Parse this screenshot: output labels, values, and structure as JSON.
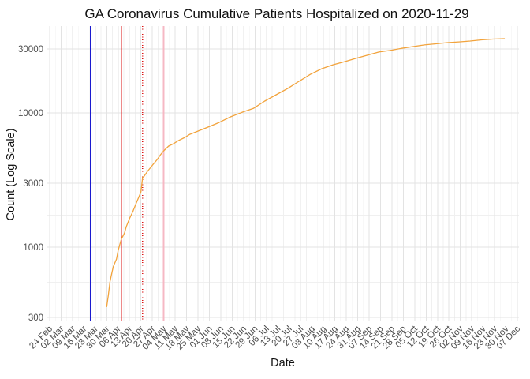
{
  "chart_data": {
    "type": "line",
    "title": "GA Coronavirus Cumulative Patients Hospitalized on 2020-11-29",
    "xlabel": "Date",
    "ylabel": "Count (Log Scale)",
    "y_scale": "log10",
    "ylim": [
      280,
      44000
    ],
    "grid": "on",
    "legend": "none",
    "x_range": [
      "2020-02-24",
      "2020-12-07"
    ],
    "x_tick_interval_days": 7,
    "x_ticks": [
      "24 Feb",
      "02 Mar",
      "09 Mar",
      "16 Mar",
      "23 Mar",
      "30 Mar",
      "06 Apr",
      "13 Apr",
      "20 Apr",
      "27 Apr",
      "04 May",
      "11 May",
      "18 May",
      "25 May",
      "01 Jun",
      "08 Jun",
      "15 Jun",
      "22 Jun",
      "29 Jun",
      "06 Jul",
      "13 Jul",
      "20 Jul",
      "27 Jul",
      "03 Aug",
      "10 Aug",
      "17 Aug",
      "24 Aug",
      "31 Aug",
      "07 Sep",
      "14 Sep",
      "21 Sep",
      "28 Sep",
      "05 Oct",
      "12 Oct",
      "19 Oct",
      "26 Oct",
      "02 Nov",
      "09 Nov",
      "16 Nov",
      "23 Nov",
      "30 Nov",
      "07 Dec"
    ],
    "y_ticks": [
      {
        "label": "30000",
        "value": 30000
      },
      {
        "label": "10000",
        "value": 10000
      },
      {
        "label": "3000",
        "value": 3000
      },
      {
        "label": "1000",
        "value": 1000
      },
      {
        "label": "300",
        "value": 300
      }
    ],
    "y_minor_values": [
      17321,
      5477,
      1732,
      548
    ],
    "series": [
      {
        "name": "cumulative-hospitalized",
        "color": "#F2A33C",
        "points": [
          [
            "2020-03-30",
            360
          ],
          [
            "2020-03-31",
            440
          ],
          [
            "2020-04-01",
            550
          ],
          [
            "2020-04-02",
            630
          ],
          [
            "2020-04-03",
            715
          ],
          [
            "2020-04-05",
            815
          ],
          [
            "2020-04-06",
            945
          ],
          [
            "2020-04-07",
            1040
          ],
          [
            "2020-04-08",
            1150
          ],
          [
            "2020-04-10",
            1280
          ],
          [
            "2020-04-11",
            1420
          ],
          [
            "2020-04-13",
            1630
          ],
          [
            "2020-04-15",
            1840
          ],
          [
            "2020-04-17",
            2110
          ],
          [
            "2020-04-19",
            2410
          ],
          [
            "2020-04-20",
            2580
          ],
          [
            "2020-04-21",
            3300
          ],
          [
            "2020-04-22",
            3380
          ],
          [
            "2020-04-24",
            3670
          ],
          [
            "2020-04-26",
            3930
          ],
          [
            "2020-04-28",
            4210
          ],
          [
            "2020-04-30",
            4500
          ],
          [
            "2020-05-02",
            4880
          ],
          [
            "2020-05-04",
            5220
          ],
          [
            "2020-05-07",
            5660
          ],
          [
            "2020-05-10",
            5900
          ],
          [
            "2020-05-13",
            6220
          ],
          [
            "2020-05-17",
            6570
          ],
          [
            "2020-05-20",
            6930
          ],
          [
            "2020-05-24",
            7230
          ],
          [
            "2020-05-31",
            7830
          ],
          [
            "2020-06-07",
            8490
          ],
          [
            "2020-06-14",
            9350
          ],
          [
            "2020-06-21",
            10100
          ],
          [
            "2020-06-28",
            10800
          ],
          [
            "2020-07-05",
            12250
          ],
          [
            "2020-07-12",
            13650
          ],
          [
            "2020-07-19",
            15200
          ],
          [
            "2020-07-26",
            17200
          ],
          [
            "2020-08-02",
            19400
          ],
          [
            "2020-08-09",
            21350
          ],
          [
            "2020-08-16",
            22850
          ],
          [
            "2020-08-23",
            24100
          ],
          [
            "2020-08-30",
            25500
          ],
          [
            "2020-09-06",
            26900
          ],
          [
            "2020-09-13",
            28400
          ],
          [
            "2020-09-20",
            29200
          ],
          [
            "2020-09-27",
            30300
          ],
          [
            "2020-10-04",
            31200
          ],
          [
            "2020-10-11",
            32100
          ],
          [
            "2020-10-18",
            32700
          ],
          [
            "2020-10-25",
            33400
          ],
          [
            "2020-11-01",
            33800
          ],
          [
            "2020-11-08",
            34300
          ],
          [
            "2020-11-15",
            35000
          ],
          [
            "2020-11-22",
            35500
          ],
          [
            "2020-11-29",
            35700
          ]
        ]
      }
    ],
    "vlines": [
      {
        "name": "blue-solid-reference",
        "color": "#1A1ACF",
        "style": "solid",
        "width": 1.3,
        "date_est": "2020-03-20"
      },
      {
        "name": "red-solid-reference",
        "color": "#DB1414",
        "style": "solid",
        "width": 1.3,
        "date_est": "2020-04-08"
      },
      {
        "name": "red-dotted-reference",
        "color": "#DB1414",
        "style": "dotted",
        "width": 1.1,
        "date_est": "2020-04-21"
      },
      {
        "name": "pink-solid-reference",
        "color": "#F6B8C4",
        "style": "solid",
        "width": 2.0,
        "date_est": "2020-05-04"
      },
      {
        "name": "pink-dotted-reference",
        "color": "#F4CCD6",
        "style": "dotted",
        "width": 1.3,
        "date_est": "2020-05-17"
      }
    ]
  }
}
